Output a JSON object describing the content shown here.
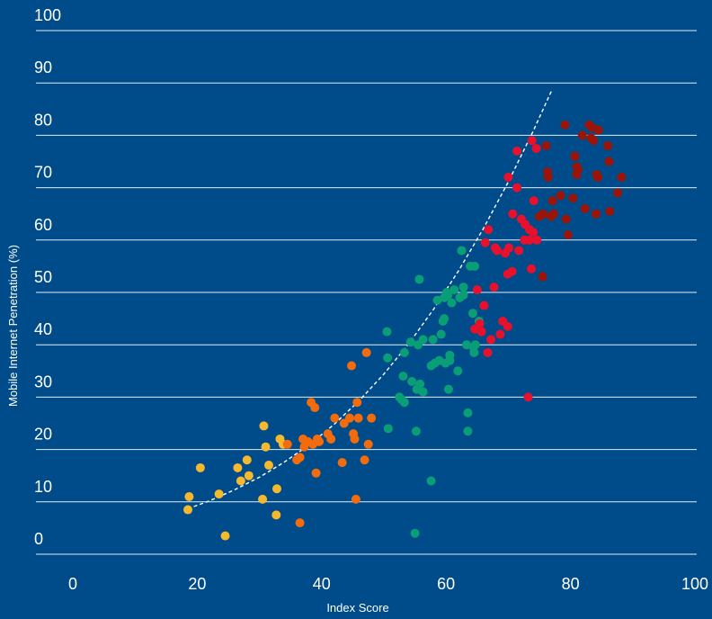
{
  "chart_data": {
    "type": "scatter",
    "title": "",
    "xlabel": "Index Score",
    "ylabel": "Mobile Internet Penetration (%)",
    "xlim": [
      0,
      100
    ],
    "ylim": [
      0,
      100
    ],
    "x_ticks": [
      0,
      20,
      40,
      60,
      80,
      100
    ],
    "y_ticks": [
      0,
      10,
      20,
      30,
      40,
      50,
      60,
      70,
      80,
      90,
      100
    ],
    "grid": "horizontal",
    "legend": "none",
    "series": [
      {
        "color": "#f5b82e",
        "points": [
          [
            18.5,
            8.5
          ],
          [
            18.7,
            11
          ],
          [
            20.5,
            16.5
          ],
          [
            23.5,
            11.5
          ],
          [
            24.5,
            3.5
          ],
          [
            26.5,
            16.5
          ],
          [
            27,
            14
          ],
          [
            28,
            18
          ],
          [
            28.3,
            15
          ],
          [
            30.5,
            10.5
          ],
          [
            30.7,
            24.5
          ],
          [
            31,
            20.5
          ],
          [
            31.5,
            17
          ],
          [
            32.7,
            7.5
          ],
          [
            32.8,
            12.5
          ],
          [
            33.3,
            22
          ],
          [
            33.8,
            21
          ]
        ]
      },
      {
        "color": "#f26c0d",
        "points": [
          [
            34.5,
            21
          ],
          [
            36,
            18
          ],
          [
            36.5,
            18.5
          ],
          [
            36.5,
            6
          ],
          [
            37,
            22
          ],
          [
            37.2,
            20.5
          ],
          [
            37.8,
            21.5
          ],
          [
            38.3,
            29
          ],
          [
            38.6,
            21
          ],
          [
            38.9,
            28
          ],
          [
            39.1,
            15.5
          ],
          [
            39.3,
            22
          ],
          [
            39.6,
            21.5
          ],
          [
            41,
            23
          ],
          [
            41.5,
            22
          ],
          [
            42.1,
            26
          ],
          [
            43.3,
            17.5
          ],
          [
            43.6,
            25
          ],
          [
            44.5,
            26
          ],
          [
            44.8,
            36
          ],
          [
            45.1,
            23
          ],
          [
            45.3,
            22
          ],
          [
            45.5,
            10.5
          ],
          [
            45.7,
            29
          ],
          [
            45.9,
            26
          ],
          [
            46.9,
            18
          ],
          [
            47.2,
            38.5
          ],
          [
            47.5,
            21
          ],
          [
            48,
            26
          ]
        ]
      },
      {
        "color": "#0a9e77",
        "points": [
          [
            50.5,
            42.5
          ],
          [
            50.6,
            37.5
          ],
          [
            50.7,
            24
          ],
          [
            52.5,
            30
          ],
          [
            52.9,
            29.5
          ],
          [
            53.1,
            34
          ],
          [
            53.3,
            29
          ],
          [
            53.3,
            38.5
          ],
          [
            54.3,
            40.5
          ],
          [
            54.5,
            33
          ],
          [
            55,
            4
          ],
          [
            55.2,
            23.5
          ],
          [
            55.3,
            31.5
          ],
          [
            55.5,
            40
          ],
          [
            55.7,
            52.5
          ],
          [
            55.8,
            32.5
          ],
          [
            56.3,
            41
          ],
          [
            56.3,
            31
          ],
          [
            57.6,
            14
          ],
          [
            57.6,
            36
          ],
          [
            57.9,
            41
          ],
          [
            58.2,
            36.5
          ],
          [
            58.6,
            48.5
          ],
          [
            58.9,
            37
          ],
          [
            59.2,
            42
          ],
          [
            59.5,
            44.5
          ],
          [
            59.7,
            49
          ],
          [
            59.7,
            45
          ],
          [
            59.9,
            36.5
          ],
          [
            60.1,
            50
          ],
          [
            60.3,
            49.5
          ],
          [
            60.4,
            31.5
          ],
          [
            60.6,
            37
          ],
          [
            60.6,
            38
          ],
          [
            60.9,
            48
          ],
          [
            61.3,
            50.5
          ],
          [
            61.9,
            35
          ],
          [
            62.2,
            49
          ],
          [
            62.5,
            58
          ],
          [
            62.8,
            51
          ],
          [
            62.8,
            49.5
          ],
          [
            63.3,
            40
          ],
          [
            63.5,
            27
          ],
          [
            63.5,
            23.5
          ],
          [
            63.9,
            55
          ],
          [
            64.3,
            46
          ],
          [
            64.4,
            39.5
          ],
          [
            64.5,
            38.5
          ],
          [
            64.6,
            55
          ],
          [
            64.7,
            40
          ],
          [
            65.3,
            44.5
          ]
        ]
      },
      {
        "color": "#e8112d",
        "points": [
          [
            64.6,
            43
          ],
          [
            65,
            50.5
          ],
          [
            65.4,
            44
          ],
          [
            65.7,
            42.5
          ],
          [
            66.1,
            47.5
          ],
          [
            66.3,
            59.5
          ],
          [
            66.7,
            38.5
          ],
          [
            66.8,
            62
          ],
          [
            67.2,
            41
          ],
          [
            67.7,
            51
          ],
          [
            67.9,
            58.5
          ],
          [
            68.2,
            58
          ],
          [
            68.7,
            42
          ],
          [
            69.1,
            44.5
          ],
          [
            69.5,
            57.5
          ],
          [
            69.9,
            43.5
          ],
          [
            69.9,
            53.5
          ],
          [
            70,
            72
          ],
          [
            70.1,
            58.5
          ],
          [
            70.6,
            54
          ],
          [
            70.7,
            65
          ],
          [
            71.4,
            70
          ],
          [
            71.4,
            77
          ],
          [
            71.7,
            58
          ],
          [
            72.1,
            64
          ],
          [
            72.6,
            60
          ],
          [
            72.7,
            63
          ],
          [
            73.2,
            30
          ],
          [
            73.4,
            62
          ],
          [
            73.4,
            60
          ],
          [
            73.7,
            54.5
          ],
          [
            73.8,
            79
          ],
          [
            74,
            61.5
          ],
          [
            74.1,
            67.5
          ],
          [
            74.5,
            77.5
          ],
          [
            74.6,
            60
          ]
        ]
      },
      {
        "color": "#9a1408",
        "points": [
          [
            75,
            64.5
          ],
          [
            75.5,
            53
          ],
          [
            75.6,
            65
          ],
          [
            76.1,
            78
          ],
          [
            76.3,
            73
          ],
          [
            76.4,
            72
          ],
          [
            76.9,
            64.5
          ],
          [
            77.1,
            67.5
          ],
          [
            77.3,
            65
          ],
          [
            78.4,
            68.5
          ],
          [
            79.1,
            82
          ],
          [
            79.3,
            64
          ],
          [
            79.6,
            61
          ],
          [
            80.4,
            68
          ],
          [
            80.7,
            76
          ],
          [
            81,
            74
          ],
          [
            81,
            72.5
          ],
          [
            81.2,
            73.5
          ],
          [
            81.9,
            80
          ],
          [
            82.3,
            66
          ],
          [
            83,
            82
          ],
          [
            83.3,
            79.5
          ],
          [
            83.5,
            81.5
          ],
          [
            83.7,
            79
          ],
          [
            84.1,
            65
          ],
          [
            84.2,
            72.5
          ],
          [
            84.4,
            72
          ],
          [
            84.5,
            81
          ],
          [
            86,
            78
          ],
          [
            86.2,
            75
          ],
          [
            86.3,
            65.5
          ],
          [
            87.6,
            69
          ],
          [
            88.2,
            72
          ]
        ]
      }
    ],
    "trendline": [
      [
        18.5,
        8.7
      ],
      [
        22,
        10.2
      ],
      [
        26,
        12.3
      ],
      [
        30,
        14.7
      ],
      [
        34,
        17.6
      ],
      [
        38,
        20.9
      ],
      [
        42,
        24.8
      ],
      [
        46,
        29.3
      ],
      [
        50,
        34.4
      ],
      [
        54,
        40.2
      ],
      [
        58,
        46.8
      ],
      [
        62,
        54.1
      ],
      [
        66,
        62.2
      ],
      [
        70,
        71.1
      ],
      [
        74,
        80.8
      ],
      [
        77,
        88.6
      ]
    ]
  }
}
